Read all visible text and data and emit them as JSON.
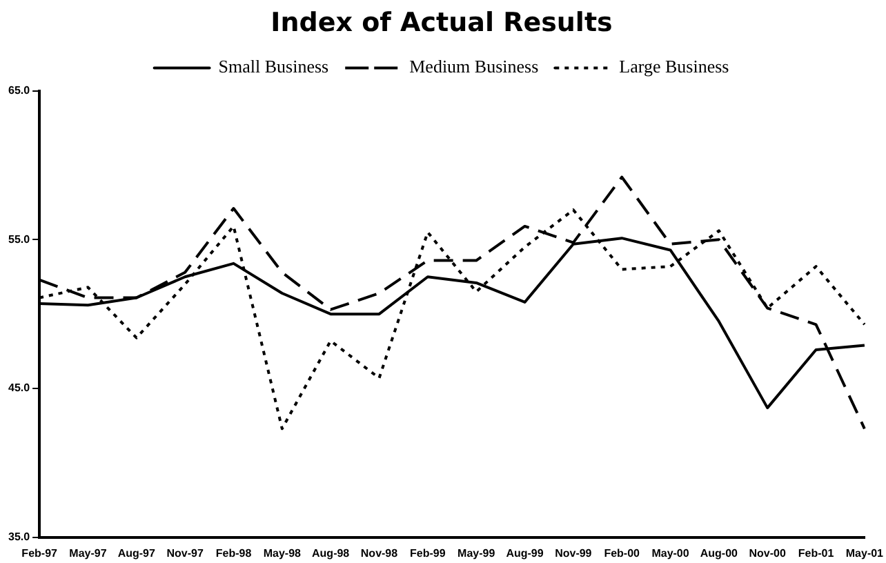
{
  "chart_data": {
    "type": "line",
    "title": "Index of Actual Results",
    "categories": [
      "Feb-97",
      "May-97",
      "Aug-97",
      "Nov-97",
      "Feb-98",
      "May-98",
      "Aug-98",
      "Nov-98",
      "Feb-99",
      "May-99",
      "Aug-99",
      "Nov-99",
      "Feb-00",
      "May-00",
      "Aug-00",
      "Nov-00",
      "Feb-01",
      "May-01"
    ],
    "series": [
      {
        "name": "Small Business",
        "color": "#000000",
        "line_style": "solid",
        "values": [
          50.7,
          50.6,
          51.1,
          52.5,
          53.4,
          51.4,
          50.0,
          50.0,
          52.5,
          52.1,
          50.8,
          54.7,
          55.1,
          54.3,
          49.5,
          43.7,
          47.6,
          47.9
        ]
      },
      {
        "name": "Medium Business",
        "color": "#000000",
        "line_style": "dashed",
        "values": [
          52.3,
          51.1,
          51.1,
          52.8,
          57.1,
          52.8,
          50.3,
          51.4,
          53.6,
          53.6,
          55.9,
          54.8,
          59.2,
          54.7,
          55.0,
          50.4,
          49.3,
          42.3
        ]
      },
      {
        "name": "Large Business",
        "color": "#000000",
        "line_style": "dotted",
        "values": [
          51.1,
          51.8,
          48.4,
          52.0,
          55.9,
          42.3,
          48.2,
          45.7,
          55.5,
          51.5,
          54.5,
          57.0,
          53.0,
          53.2,
          55.6,
          50.4,
          53.2,
          49.3
        ]
      }
    ],
    "ylim": [
      35,
      65
    ],
    "yticks": [
      {
        "value": 35,
        "label": "35.0"
      },
      {
        "value": 45,
        "label": "45.0"
      },
      {
        "value": 55,
        "label": "55.0"
      },
      {
        "value": 65,
        "label": "65.0"
      }
    ],
    "grid": false,
    "legend": "top",
    "marker": "none"
  }
}
